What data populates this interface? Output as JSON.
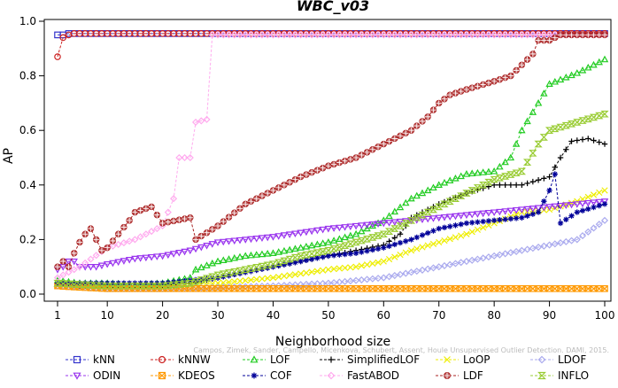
{
  "chart_data": {
    "type": "line",
    "title": "WBC_v03",
    "xlabel": "Neighborhood size",
    "ylabel": "AP",
    "xlim": [
      1,
      100
    ],
    "ylim": [
      0,
      1
    ],
    "x_ticks": [
      1,
      10,
      20,
      30,
      40,
      50,
      60,
      70,
      80,
      90,
      100
    ],
    "y_ticks": [
      0.0,
      0.2,
      0.4,
      0.6,
      0.8,
      1.0
    ],
    "y_tick_labels": [
      "0.0",
      "0.2",
      "0.4",
      "0.6",
      "0.8",
      "1.0"
    ],
    "grid": false,
    "legend_position": "bottom",
    "watermark": "Campos, Zimek, Sander, Campello, Micenkova, Schubert, Assent, Houle Unsupervised Outlier Detection. DAMI, 2015.",
    "series": [
      {
        "name": "kNN",
        "color": "#3333cc",
        "marker": "square",
        "points": [
          [
            1,
            0.95
          ],
          [
            2,
            0.95
          ],
          [
            3,
            0.955
          ],
          [
            4,
            0.955
          ],
          [
            5,
            0.955
          ],
          [
            10,
            0.955
          ],
          [
            20,
            0.955
          ],
          [
            30,
            0.955
          ],
          [
            40,
            0.955
          ],
          [
            50,
            0.955
          ],
          [
            60,
            0.955
          ],
          [
            70,
            0.955
          ],
          [
            80,
            0.955
          ],
          [
            90,
            0.955
          ],
          [
            100,
            0.955
          ]
        ]
      },
      {
        "name": "kNNW",
        "color": "#cc2222",
        "marker": "circle",
        "points": [
          [
            1,
            0.87
          ],
          [
            2,
            0.94
          ],
          [
            3,
            0.95
          ],
          [
            4,
            0.955
          ],
          [
            5,
            0.955
          ],
          [
            10,
            0.955
          ],
          [
            20,
            0.955
          ],
          [
            30,
            0.955
          ],
          [
            40,
            0.955
          ],
          [
            50,
            0.955
          ],
          [
            60,
            0.955
          ],
          [
            70,
            0.955
          ],
          [
            80,
            0.955
          ],
          [
            90,
            0.955
          ],
          [
            100,
            0.955
          ]
        ]
      },
      {
        "name": "LOF",
        "color": "#22cc22",
        "marker": "triangle-up",
        "points": [
          [
            1,
            0.05
          ],
          [
            5,
            0.04
          ],
          [
            10,
            0.04
          ],
          [
            15,
            0.035
          ],
          [
            20,
            0.04
          ],
          [
            25,
            0.06
          ],
          [
            26,
            0.09
          ],
          [
            30,
            0.12
          ],
          [
            35,
            0.14
          ],
          [
            40,
            0.15
          ],
          [
            45,
            0.17
          ],
          [
            50,
            0.19
          ],
          [
            55,
            0.22
          ],
          [
            60,
            0.27
          ],
          [
            65,
            0.35
          ],
          [
            70,
            0.4
          ],
          [
            75,
            0.44
          ],
          [
            80,
            0.45
          ],
          [
            83,
            0.5
          ],
          [
            85,
            0.6
          ],
          [
            88,
            0.7
          ],
          [
            90,
            0.77
          ],
          [
            95,
            0.81
          ],
          [
            100,
            0.86
          ]
        ]
      },
      {
        "name": "SimplifiedLOF",
        "color": "#000000",
        "marker": "plus",
        "points": [
          [
            1,
            0.04
          ],
          [
            5,
            0.03
          ],
          [
            10,
            0.03
          ],
          [
            15,
            0.03
          ],
          [
            20,
            0.03
          ],
          [
            25,
            0.04
          ],
          [
            30,
            0.06
          ],
          [
            35,
            0.08
          ],
          [
            40,
            0.1
          ],
          [
            45,
            0.12
          ],
          [
            50,
            0.14
          ],
          [
            55,
            0.16
          ],
          [
            60,
            0.18
          ],
          [
            63,
            0.22
          ],
          [
            65,
            0.28
          ],
          [
            70,
            0.33
          ],
          [
            75,
            0.37
          ],
          [
            80,
            0.4
          ],
          [
            85,
            0.4
          ],
          [
            90,
            0.43
          ],
          [
            92,
            0.5
          ],
          [
            94,
            0.56
          ],
          [
            97,
            0.57
          ],
          [
            100,
            0.55
          ]
        ]
      },
      {
        "name": "LoOP",
        "color": "#eeee00",
        "marker": "x",
        "points": [
          [
            1,
            0.03
          ],
          [
            10,
            0.03
          ],
          [
            20,
            0.03
          ],
          [
            25,
            0.03
          ],
          [
            30,
            0.04
          ],
          [
            40,
            0.06
          ],
          [
            50,
            0.09
          ],
          [
            55,
            0.1
          ],
          [
            60,
            0.12
          ],
          [
            65,
            0.16
          ],
          [
            70,
            0.19
          ],
          [
            75,
            0.22
          ],
          [
            80,
            0.26
          ],
          [
            85,
            0.3
          ],
          [
            90,
            0.31
          ],
          [
            95,
            0.34
          ],
          [
            100,
            0.38
          ]
        ]
      },
      {
        "name": "LDOF",
        "color": "#aaaaee",
        "marker": "diamond",
        "points": [
          [
            1,
            0.03
          ],
          [
            10,
            0.02
          ],
          [
            20,
            0.02
          ],
          [
            30,
            0.025
          ],
          [
            40,
            0.03
          ],
          [
            50,
            0.04
          ],
          [
            60,
            0.06
          ],
          [
            70,
            0.1
          ],
          [
            80,
            0.14
          ],
          [
            85,
            0.16
          ],
          [
            90,
            0.18
          ],
          [
            95,
            0.2
          ],
          [
            100,
            0.27
          ]
        ]
      },
      {
        "name": "ODIN",
        "color": "#9933ee",
        "marker": "triangle-down",
        "points": [
          [
            1,
            0.09
          ],
          [
            2,
            0.1
          ],
          [
            3,
            0.12
          ],
          [
            4,
            0.12
          ],
          [
            5,
            0.1
          ],
          [
            8,
            0.1
          ],
          [
            10,
            0.11
          ],
          [
            15,
            0.13
          ],
          [
            20,
            0.14
          ],
          [
            25,
            0.16
          ],
          [
            30,
            0.19
          ],
          [
            35,
            0.2
          ],
          [
            40,
            0.21
          ],
          [
            50,
            0.24
          ],
          [
            60,
            0.26
          ],
          [
            70,
            0.28
          ],
          [
            80,
            0.3
          ],
          [
            90,
            0.32
          ],
          [
            100,
            0.34
          ]
        ]
      },
      {
        "name": "KDEOS",
        "color": "#ff9900",
        "marker": "square-x",
        "points": [
          [
            1,
            0.03
          ],
          [
            5,
            0.025
          ],
          [
            10,
            0.02
          ],
          [
            15,
            0.02
          ],
          [
            20,
            0.02
          ],
          [
            25,
            0.02
          ],
          [
            30,
            0.02
          ],
          [
            40,
            0.02
          ],
          [
            50,
            0.02
          ],
          [
            60,
            0.02
          ],
          [
            70,
            0.02
          ],
          [
            80,
            0.02
          ],
          [
            90,
            0.02
          ],
          [
            100,
            0.02
          ]
        ]
      },
      {
        "name": "COF",
        "color": "#000099",
        "marker": "asterisk",
        "points": [
          [
            1,
            0.04
          ],
          [
            5,
            0.04
          ],
          [
            10,
            0.04
          ],
          [
            15,
            0.04
          ],
          [
            20,
            0.04
          ],
          [
            25,
            0.05
          ],
          [
            30,
            0.06
          ],
          [
            35,
            0.08
          ],
          [
            40,
            0.1
          ],
          [
            45,
            0.12
          ],
          [
            50,
            0.14
          ],
          [
            55,
            0.15
          ],
          [
            60,
            0.17
          ],
          [
            65,
            0.2
          ],
          [
            70,
            0.24
          ],
          [
            75,
            0.26
          ],
          [
            80,
            0.27
          ],
          [
            85,
            0.28
          ],
          [
            88,
            0.3
          ],
          [
            90,
            0.38
          ],
          [
            91,
            0.44
          ],
          [
            92,
            0.26
          ],
          [
            95,
            0.3
          ],
          [
            100,
            0.33
          ]
        ]
      },
      {
        "name": "FastABOD",
        "color": "#ffaaee",
        "marker": "diamond-open",
        "points": [
          [
            1,
            0.06
          ],
          [
            5,
            0.1
          ],
          [
            10,
            0.17
          ],
          [
            15,
            0.2
          ],
          [
            20,
            0.25
          ],
          [
            22,
            0.35
          ],
          [
            23,
            0.5
          ],
          [
            25,
            0.5
          ],
          [
            26,
            0.63
          ],
          [
            28,
            0.64
          ],
          [
            29,
            0.95
          ],
          [
            30,
            0.95
          ],
          [
            40,
            0.95
          ],
          [
            50,
            0.95
          ],
          [
            60,
            0.95
          ],
          [
            70,
            0.95
          ],
          [
            80,
            0.95
          ],
          [
            90,
            0.95
          ],
          [
            100,
            0.95
          ]
        ]
      },
      {
        "name": "LDF",
        "color": "#aa2222",
        "marker": "circle-plus",
        "points": [
          [
            1,
            0.1
          ],
          [
            2,
            0.12
          ],
          [
            3,
            0.1
          ],
          [
            4,
            0.15
          ],
          [
            5,
            0.19
          ],
          [
            6,
            0.22
          ],
          [
            7,
            0.24
          ],
          [
            8,
            0.2
          ],
          [
            9,
            0.16
          ],
          [
            10,
            0.17
          ],
          [
            12,
            0.22
          ],
          [
            14,
            0.27
          ],
          [
            15,
            0.3
          ],
          [
            18,
            0.32
          ],
          [
            20,
            0.26
          ],
          [
            25,
            0.28
          ],
          [
            26,
            0.2
          ],
          [
            30,
            0.25
          ],
          [
            35,
            0.33
          ],
          [
            40,
            0.38
          ],
          [
            45,
            0.43
          ],
          [
            50,
            0.47
          ],
          [
            55,
            0.5
          ],
          [
            60,
            0.55
          ],
          [
            65,
            0.6
          ],
          [
            68,
            0.65
          ],
          [
            70,
            0.7
          ],
          [
            72,
            0.73
          ],
          [
            75,
            0.75
          ],
          [
            80,
            0.78
          ],
          [
            83,
            0.8
          ],
          [
            85,
            0.84
          ],
          [
            87,
            0.88
          ],
          [
            88,
            0.93
          ],
          [
            90,
            0.93
          ],
          [
            92,
            0.95
          ],
          [
            100,
            0.95
          ]
        ]
      },
      {
        "name": "INFLO",
        "color": "#99cc33",
        "marker": "hourglass",
        "points": [
          [
            1,
            0.04
          ],
          [
            5,
            0.035
          ],
          [
            10,
            0.03
          ],
          [
            15,
            0.03
          ],
          [
            20,
            0.03
          ],
          [
            25,
            0.04
          ],
          [
            30,
            0.07
          ],
          [
            35,
            0.09
          ],
          [
            40,
            0.11
          ],
          [
            45,
            0.14
          ],
          [
            50,
            0.16
          ],
          [
            55,
            0.19
          ],
          [
            60,
            0.22
          ],
          [
            65,
            0.27
          ],
          [
            70,
            0.32
          ],
          [
            75,
            0.37
          ],
          [
            80,
            0.42
          ],
          [
            85,
            0.45
          ],
          [
            88,
            0.55
          ],
          [
            90,
            0.6
          ],
          [
            95,
            0.63
          ],
          [
            100,
            0.66
          ]
        ]
      }
    ]
  }
}
